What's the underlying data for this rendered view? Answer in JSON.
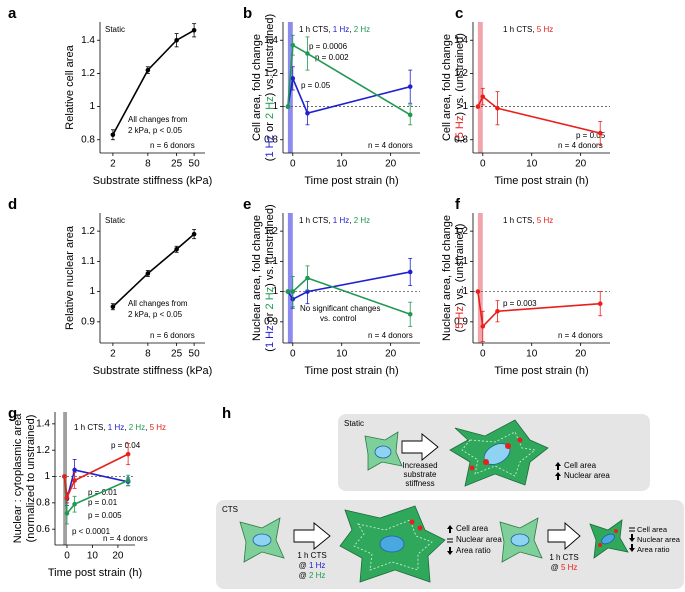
{
  "chart_data": [
    {
      "type": "line",
      "label": "a",
      "xscale": "log",
      "xlim": [
        1.2,
        77
      ],
      "xticks": [
        2,
        8,
        25,
        50
      ],
      "ylim": [
        0.72,
        1.51
      ],
      "yticks": [
        0.8,
        1.0,
        1.2,
        1.4
      ],
      "xlabel": "Substrate stiffness (kPa)",
      "ylabel": [
        [
          {
            "text": "Relative cell area"
          }
        ]
      ],
      "x": [
        2,
        8,
        25,
        50
      ],
      "series": [
        {
          "color": "#000000",
          "values": [
            0.83,
            1.22,
            1.4,
            1.46
          ],
          "errors": [
            0.03,
            0.02,
            0.04,
            0.04
          ]
        }
      ],
      "annotations": [
        "Static",
        "All changes from",
        "2 kPa, p < 0.05",
        "n = 6 donors"
      ]
    },
    {
      "type": "line",
      "label": "b",
      "xlim": [
        -2,
        26
      ],
      "xticks": [
        0,
        10,
        20
      ],
      "ylim": [
        0.72,
        1.51
      ],
      "yticks": [
        0.8,
        1.0,
        1.2,
        1.4
      ],
      "refline": 1.0,
      "shade": [
        -1,
        0
      ],
      "shade_color": "#8c8cf0",
      "xlabel": "Time post strain (h)",
      "ylabel": [
        [
          {
            "text": "Cell area, fold change"
          }
        ],
        [
          {
            "text": "("
          },
          {
            "text": "1 Hz",
            "color": "#2020d0"
          },
          {
            "text": " or "
          },
          {
            "text": "2 Hz",
            "color": "#1e9a50"
          },
          {
            "text": ") vs. (unstrained)"
          }
        ]
      ],
      "title": [
        {
          "text": "1 h CTS, "
        },
        {
          "text": "1 Hz",
          "color": "#2020d0"
        },
        {
          "text": ", "
        },
        {
          "text": "2 Hz",
          "color": "#1e9a50"
        }
      ],
      "x": [
        -1,
        0,
        3,
        24
      ],
      "series": [
        {
          "name": "1 Hz",
          "color": "#2020d0",
          "values": [
            1.0,
            1.17,
            0.96,
            1.12
          ],
          "errors": [
            null,
            0.07,
            0.07,
            0.1
          ]
        },
        {
          "name": "2 Hz",
          "color": "#1e9a50",
          "values": [
            1.0,
            1.37,
            1.32,
            0.95
          ],
          "errors": [
            null,
            0.06,
            0.1,
            0.06
          ]
        }
      ],
      "annotations": [
        "p = 0.0006",
        "p = 0.002",
        "p = 0.05",
        "n = 4 donors"
      ]
    },
    {
      "type": "line",
      "label": "c",
      "xlim": [
        -2,
        26
      ],
      "xticks": [
        0,
        10,
        20
      ],
      "ylim": [
        0.72,
        1.51
      ],
      "yticks": [
        0.8,
        1.0,
        1.2,
        1.4
      ],
      "refline": 1.0,
      "shade": [
        -1,
        0
      ],
      "shade_color": "#f2a4ac",
      "xlabel": "Time post strain (h)",
      "ylabel": [
        [
          {
            "text": "Cell area, fold change"
          }
        ],
        [
          {
            "text": "("
          },
          {
            "text": "5 Hz",
            "color": "#e8201c"
          },
          {
            "text": ") vs. (unstrained)"
          }
        ]
      ],
      "title": [
        {
          "text": "1 h CTS, "
        },
        {
          "text": "5 Hz",
          "color": "#e8201c"
        }
      ],
      "x": [
        -1,
        0,
        3,
        24
      ],
      "series": [
        {
          "name": "5 Hz",
          "color": "#e8201c",
          "values": [
            1.0,
            1.06,
            0.99,
            0.84
          ],
          "errors": [
            null,
            0.05,
            0.1,
            0.07
          ]
        }
      ],
      "annotations": [
        "p = 0.05",
        "n = 4 donors"
      ]
    },
    {
      "type": "line",
      "label": "d",
      "xscale": "log",
      "xlim": [
        1.2,
        77
      ],
      "xticks": [
        2,
        8,
        25,
        50
      ],
      "ylim": [
        0.83,
        1.26
      ],
      "yticks": [
        0.9,
        1.0,
        1.1,
        1.2
      ],
      "xlabel": "Substrate stiffness (kPa)",
      "ylabel": [
        [
          {
            "text": "Relative nuclear area"
          }
        ]
      ],
      "x": [
        2,
        8,
        25,
        50
      ],
      "series": [
        {
          "color": "#000000",
          "values": [
            0.95,
            1.06,
            1.14,
            1.19
          ],
          "errors": [
            0.01,
            0.01,
            0.01,
            0.015
          ]
        }
      ],
      "annotations": [
        "Static",
        "All changes from",
        "2 kPa, p < 0.05",
        "n = 6 donors"
      ]
    },
    {
      "type": "line",
      "label": "e",
      "xlim": [
        -2,
        26
      ],
      "xticks": [
        0,
        10,
        20
      ],
      "ylim": [
        0.83,
        1.26
      ],
      "yticks": [
        0.9,
        1.0,
        1.1,
        1.2
      ],
      "refline": 1.0,
      "shade": [
        -1,
        0
      ],
      "shade_color": "#8c8cf0",
      "xlabel": "Time post strain (h)",
      "ylabel": [
        [
          {
            "text": "Nuclear area, fold change"
          }
        ],
        [
          {
            "text": "("
          },
          {
            "text": "1 Hz",
            "color": "#2020d0"
          },
          {
            "text": " or "
          },
          {
            "text": "2 Hz",
            "color": "#1e9a50"
          },
          {
            "text": ") vs. (unstrained)"
          }
        ]
      ],
      "title": [
        {
          "text": "1 h CTS, "
        },
        {
          "text": "1 Hz",
          "color": "#2020d0"
        },
        {
          "text": ", "
        },
        {
          "text": "2 Hz",
          "color": "#1e9a50"
        }
      ],
      "x": [
        -1,
        0,
        3,
        24
      ],
      "series": [
        {
          "name": "1 Hz",
          "color": "#2020d0",
          "values": [
            1.0,
            0.975,
            1.0,
            1.065
          ],
          "errors": [
            null,
            0.03,
            0.04,
            0.045
          ]
        },
        {
          "name": "2 Hz",
          "color": "#1e9a50",
          "values": [
            1.0,
            1.0,
            1.045,
            0.925
          ],
          "errors": [
            null,
            0.05,
            0.04,
            0.04
          ]
        }
      ],
      "annotations": [
        "No significant changes",
        "vs. control",
        "n = 4 donors"
      ]
    },
    {
      "type": "line",
      "label": "f",
      "xlim": [
        -2,
        26
      ],
      "xticks": [
        0,
        10,
        20
      ],
      "ylim": [
        0.83,
        1.26
      ],
      "yticks": [
        0.9,
        1.0,
        1.1,
        1.2
      ],
      "refline": 1.0,
      "shade": [
        -1,
        0
      ],
      "shade_color": "#f2a4ac",
      "xlabel": "Time post strain (h)",
      "ylabel": [
        [
          {
            "text": "Nuclear area, fold change"
          }
        ],
        [
          {
            "text": "("
          },
          {
            "text": "5 Hz",
            "color": "#e8201c"
          },
          {
            "text": ") vs. (unstrained)"
          }
        ]
      ],
      "title": [
        {
          "text": "1 h CTS, "
        },
        {
          "text": "5 Hz",
          "color": "#e8201c"
        }
      ],
      "x": [
        -1,
        0,
        3,
        24
      ],
      "series": [
        {
          "name": "5 Hz",
          "color": "#e8201c",
          "values": [
            1.0,
            0.885,
            0.935,
            0.96
          ],
          "errors": [
            null,
            0.05,
            0.035,
            0.04
          ]
        }
      ],
      "annotations": [
        "p = 0.003",
        "n = 4 donors"
      ]
    },
    {
      "type": "line",
      "label": "g",
      "xlim": [
        -4.7,
        26.7
      ],
      "xticks": [
        0,
        10,
        20
      ],
      "ylim": [
        0.48,
        1.49
      ],
      "yticks": [
        0.6,
        0.8,
        1.0,
        1.2,
        1.4
      ],
      "refline": 1.0,
      "shade": [
        -1.5,
        0
      ],
      "shade_color": "#a0a0a0",
      "xlabel": "Time post strain (h)",
      "ylabel": [
        [
          {
            "text": "Nuclear : cytoplasmic area"
          }
        ],
        [
          {
            "text": "(normalized to unstrained)"
          }
        ]
      ],
      "title": [
        {
          "text": "1 h CTS, "
        },
        {
          "text": "1 Hz",
          "color": "#2020d0"
        },
        {
          "text": ", "
        },
        {
          "text": "2 Hz",
          "color": "#1e9a50"
        },
        {
          "text": ", "
        },
        {
          "text": "5 Hz",
          "color": "#e8201c"
        }
      ],
      "x": [
        -1,
        0,
        3,
        24
      ],
      "series": [
        {
          "name": "1 Hz",
          "color": "#2020d0",
          "values": [
            1.0,
            0.83,
            1.05,
            0.96
          ],
          "errors": [
            null,
            0.05,
            0.08,
            0.03
          ]
        },
        {
          "name": "2 Hz",
          "color": "#1e9a50",
          "values": [
            1.0,
            0.72,
            0.79,
            0.97
          ],
          "errors": [
            null,
            0.08,
            0.06,
            0.04
          ]
        },
        {
          "name": "5 Hz",
          "color": "#e8201c",
          "values": [
            1.0,
            0.84,
            0.97,
            1.17
          ],
          "errors": [
            null,
            0.04,
            0.06,
            0.08
          ]
        }
      ],
      "annotations": [
        "p = 0.04",
        "p = 0.01",
        "p = 0.01",
        "p = 0.005",
        "p < 0.0001",
        "n = 4 donors"
      ]
    }
  ],
  "diagram": {
    "label": "h",
    "static": {
      "title": "Static",
      "arrow_label": [
        "Increased",
        "substrate",
        "stiffness"
      ],
      "effects": [
        "Cell area",
        "Nuclear area"
      ]
    },
    "cts": {
      "title": "CTS",
      "left": {
        "arrow_label": [
          "1 h CTS",
          [
            "@ ",
            "1 Hz"
          ],
          [
            "@ ",
            "2 Hz"
          ]
        ],
        "effects": [
          "Cell area",
          "Nuclear area",
          "Area ratio"
        ]
      },
      "right": {
        "arrow_label": [
          "1 h CTS",
          [
            "@ ",
            "5 Hz"
          ]
        ],
        "effects": [
          "Cell area",
          "Nuclear area",
          "Area ratio"
        ]
      }
    }
  }
}
